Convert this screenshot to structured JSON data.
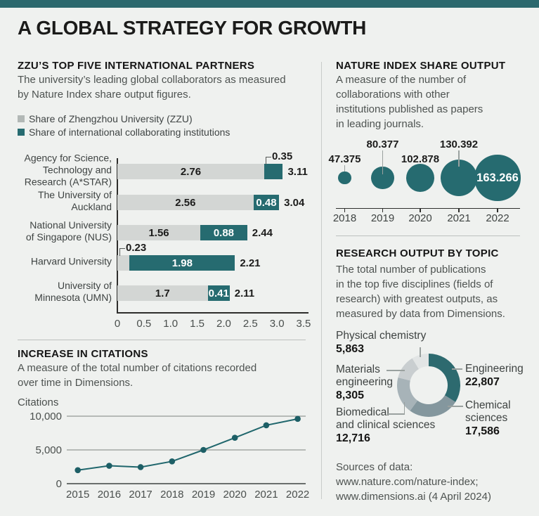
{
  "header": {
    "title": "A GLOBAL STRATEGY FOR GROWTH"
  },
  "accent_color": "#266b70",
  "partners": {
    "heading": "ZZU’S TOP FIVE INTERNATIONAL PARTNERS",
    "description_lines": [
      "The university’s leading global collaborators as measured",
      "by Nature Index share output figures."
    ],
    "legend": [
      {
        "label": "Share of Zhengzhou University (ZZU)",
        "color": "#b2b8b6"
      },
      {
        "label": "Share of international collaborating institutions",
        "color": "#266b70"
      }
    ]
  },
  "nature_index": {
    "heading": "NATURE INDEX SHARE OUTPUT",
    "description_lines": [
      "A measure of the number of",
      "collaborations with other",
      "institutions published as papers",
      "in leading journals."
    ]
  },
  "citations": {
    "heading": "INCREASE IN CITATIONS",
    "description_lines": [
      "A measure of the total number of citations recorded",
      "over time in Dimensions."
    ]
  },
  "research": {
    "heading": "RESEARCH OUTPUT BY TOPIC",
    "description_lines": [
      "The total number of publications",
      "in the top five disciplines (fields of",
      "research) with greatest outputs, as",
      "measured by data from Dimensions."
    ]
  },
  "sources": {
    "lines": [
      "Sources of data:",
      "www.nature.com/nature-index;",
      "www.dimensions.ai (4 April 2024)"
    ]
  },
  "chart_data": [
    {
      "id": "partners",
      "type": "bar",
      "orientation": "horizontal",
      "title": "ZZU’S TOP FIVE INTERNATIONAL PARTNERS",
      "series": [
        {
          "name": "Share of Zhengzhou University (ZZU)",
          "color": "#d3d6d4"
        },
        {
          "name": "Share of international collaborating institutions",
          "color": "#266b70"
        }
      ],
      "xlim": [
        0,
        3.5
      ],
      "x_ticks": [
        "0",
        "0.5",
        "1.0",
        "1.5",
        "2.0",
        "2.5",
        "3.0",
        "3.5"
      ],
      "rows": [
        {
          "label_lines": [
            "Agency for Science,",
            "Technology and",
            "Research (A*STAR)"
          ],
          "zzu": 2.76,
          "intl": 0.35,
          "total": 3.11,
          "zzu_display": "2.76",
          "intl_display": "0.35",
          "total_display": "3.11",
          "zzu_label": "inside",
          "intl_label": "callout"
        },
        {
          "label_lines": [
            "The University of",
            "Auckland"
          ],
          "zzu": 2.56,
          "intl": 0.48,
          "total": 3.04,
          "zzu_display": "2.56",
          "intl_display": "0.48",
          "total_display": "3.04",
          "zzu_label": "inside",
          "intl_label": "inside"
        },
        {
          "label_lines": [
            "National University",
            "of Singapore (NUS)"
          ],
          "zzu": 1.56,
          "intl": 0.88,
          "total": 2.44,
          "zzu_display": "1.56",
          "intl_display": "0.88",
          "total_display": "2.44",
          "zzu_label": "inside",
          "intl_label": "inside"
        },
        {
          "label_lines": [
            "Harvard University"
          ],
          "zzu": 0.23,
          "intl": 1.98,
          "total": 2.21,
          "zzu_display": "0.23",
          "intl_display": "1.98",
          "total_display": "2.21",
          "zzu_label": "callout",
          "intl_label": "inside"
        },
        {
          "label_lines": [
            "University of",
            "Minnesota (UMN)"
          ],
          "zzu": 1.7,
          "intl": 0.41,
          "total": 2.11,
          "zzu_display": "1.7",
          "intl_display": "0.41",
          "total_display": "2.11",
          "zzu_label": "inside",
          "intl_label": "inside"
        }
      ]
    },
    {
      "id": "nature_index",
      "type": "bubble",
      "title": "NATURE INDEX SHARE OUTPUT",
      "categories": [
        "2018",
        "2019",
        "2020",
        "2021",
        "2022"
      ],
      "values": [
        47.375,
        80.377,
        102.878,
        130.392,
        163.266
      ],
      "value_displays": [
        "47.375",
        "80.377",
        "102.878",
        "130.392",
        "163.266"
      ],
      "label_positions": [
        "above-low",
        "above-high",
        "above-low",
        "above-high",
        "inside"
      ],
      "bubble_color": "#266b70"
    },
    {
      "id": "citations",
      "type": "line",
      "title": "INCREASE IN CITATIONS",
      "ylabel": "Citations",
      "x": [
        2015,
        2016,
        2017,
        2018,
        2019,
        2020,
        2021,
        2022
      ],
      "values": [
        2000,
        2650,
        2450,
        3300,
        5000,
        6800,
        8650,
        9600
      ],
      "ylim": [
        0,
        10000
      ],
      "y_ticks": [
        {
          "value": 0,
          "label": "0"
        },
        {
          "value": 5000,
          "label": "5,000"
        },
        {
          "value": 10000,
          "label": "10,000"
        }
      ],
      "line_color": "#1f666c"
    },
    {
      "id": "research",
      "type": "pie",
      "title": "RESEARCH OUTPUT BY TOPIC",
      "donut": true,
      "slices": [
        {
          "label_lines": [
            "Engineering"
          ],
          "value": 22807,
          "display": "22,807",
          "color": "#2d6a6f"
        },
        {
          "label_lines": [
            "Chemical",
            "sciences"
          ],
          "value": 17586,
          "display": "17,586",
          "color": "#84979e"
        },
        {
          "label_lines": [
            "Biomedical",
            "and clinical sciences"
          ],
          "value": 12716,
          "display": "12,716",
          "color": "#a7b3b8"
        },
        {
          "label_lines": [
            "Materials",
            "engineering"
          ],
          "value": 8305,
          "display": "8,305",
          "color": "#c9ced0"
        },
        {
          "label_lines": [
            "Physical chemistry"
          ],
          "value": 5863,
          "display": "5,863",
          "color": "#e2e5e5"
        }
      ]
    }
  ]
}
